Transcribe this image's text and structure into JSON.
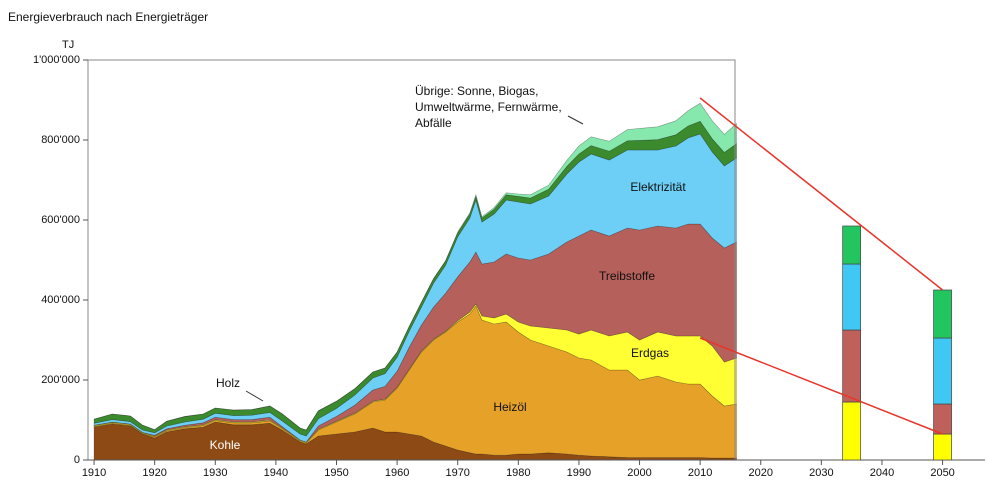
{
  "chart_data": {
    "type": "stacked_area",
    "title": "Energieverbrauch nach Energieträger",
    "y_unit": "TJ",
    "x": [
      1910,
      1913,
      1916,
      1918,
      1920,
      1922,
      1925,
      1928,
      1930,
      1933,
      1936,
      1939,
      1941,
      1944,
      1945,
      1947,
      1950,
      1953,
      1956,
      1958,
      1960,
      1962,
      1964,
      1966,
      1968,
      1970,
      1972,
      1973,
      1974,
      1976,
      1978,
      1980,
      1982,
      1985,
      1988,
      1990,
      1992,
      1995,
      1998,
      2000,
      2003,
      2006,
      2008,
      2010,
      2012,
      2014,
      2016
    ],
    "series": [
      {
        "name": "Kohle",
        "color": "#8e4a14",
        "values": [
          82000,
          90000,
          85000,
          65000,
          55000,
          70000,
          78000,
          82000,
          95000,
          88000,
          88000,
          92000,
          75000,
          45000,
          40000,
          60000,
          65000,
          70000,
          80000,
          70000,
          70000,
          65000,
          60000,
          45000,
          35000,
          25000,
          18000,
          15000,
          15000,
          12000,
          12000,
          15000,
          15000,
          18000,
          15000,
          12000,
          10000,
          8000,
          6000,
          6000,
          6000,
          6000,
          6000,
          6000,
          5000,
          5000,
          5000
        ]
      },
      {
        "name": "Heizöl",
        "color": "#e6a228",
        "values": [
          2000,
          2000,
          2000,
          1000,
          3000,
          3000,
          3000,
          4000,
          4000,
          5000,
          5000,
          6000,
          4000,
          2000,
          2000,
          15000,
          30000,
          45000,
          65000,
          80000,
          110000,
          160000,
          210000,
          255000,
          285000,
          320000,
          347000,
          370000,
          335000,
          328000,
          333000,
          305000,
          285000,
          267000,
          255000,
          243000,
          240000,
          217000,
          219000,
          194000,
          204000,
          189000,
          184000,
          184000,
          155000,
          130000,
          135000
        ]
      },
      {
        "name": "Erdgas",
        "color": "#ffff33",
        "values": [
          2000,
          2000,
          2000,
          2000,
          2000,
          2000,
          2000,
          2000,
          2000,
          2000,
          2000,
          2000,
          2000,
          2000,
          2000,
          2000,
          2000,
          2000,
          2000,
          2000,
          2000,
          2000,
          2000,
          2000,
          2000,
          3000,
          5000,
          5000,
          10000,
          15000,
          20000,
          25000,
          35000,
          45000,
          55000,
          60000,
          75000,
          85000,
          95000,
          100000,
          110000,
          115000,
          120000,
          120000,
          125000,
          110000,
          115000
        ]
      },
      {
        "name": "Treibstoffe",
        "color": "#b5605b",
        "values": [
          1000,
          1000,
          1000,
          1000,
          2000,
          3000,
          4000,
          5000,
          6000,
          6000,
          6000,
          7000,
          3000,
          1000,
          1000,
          8000,
          12000,
          20000,
          28000,
          32000,
          40000,
          55000,
          65000,
          80000,
          95000,
          110000,
          125000,
          130000,
          130000,
          140000,
          150000,
          160000,
          165000,
          185000,
          220000,
          245000,
          250000,
          250000,
          260000,
          275000,
          265000,
          270000,
          280000,
          280000,
          270000,
          285000,
          290000
        ]
      },
      {
        "name": "Elektrizität",
        "color": "#6dcff6",
        "values": [
          5000,
          6000,
          6000,
          6000,
          6000,
          7000,
          8000,
          9000,
          10000,
          10000,
          11000,
          12000,
          14000,
          15000,
          15000,
          18000,
          20000,
          25000,
          30000,
          32000,
          35000,
          40000,
          45000,
          60000,
          70000,
          100000,
          110000,
          130000,
          105000,
          120000,
          135000,
          140000,
          140000,
          145000,
          170000,
          185000,
          190000,
          190000,
          195000,
          200000,
          190000,
          205000,
          215000,
          225000,
          215000,
          205000,
          210000
        ]
      },
      {
        "name": "Holz",
        "color": "#3c8a2e",
        "values": [
          10000,
          14000,
          14000,
          12000,
          8000,
          12000,
          14000,
          13000,
          13000,
          14000,
          14000,
          16000,
          18000,
          15000,
          15000,
          20000,
          18000,
          16000,
          15000,
          14000,
          13000,
          12000,
          12000,
          11000,
          11000,
          10000,
          10000,
          10000,
          10000,
          12000,
          13000,
          14000,
          15000,
          17000,
          19000,
          20000,
          21000,
          22000,
          23000,
          24000,
          26000,
          28000,
          30000,
          32000,
          33000,
          34000,
          36000
        ]
      },
      {
        "name": "Übrige: Sonne, Biogas, Umweltwärme, Fernwärme, Abfälle",
        "color": "#86e8ad",
        "values": [
          0,
          0,
          0,
          0,
          0,
          0,
          0,
          0,
          0,
          0,
          0,
          0,
          0,
          0,
          0,
          0,
          0,
          0,
          0,
          0,
          0,
          0,
          0,
          0,
          0,
          2000,
          3000,
          3000,
          3000,
          4000,
          5000,
          6000,
          8000,
          10000,
          15000,
          20000,
          22000,
          25000,
          28000,
          30000,
          32000,
          35000,
          38000,
          45000,
          45000,
          45000,
          50000
        ]
      }
    ],
    "projections": {
      "x": [
        2035,
        2050
      ],
      "segments": [
        {
          "color": "#ffff00",
          "values": [
            145000,
            65000
          ]
        },
        {
          "color": "#c0605a",
          "values": [
            180000,
            75000
          ]
        },
        {
          "color": "#40c8f4",
          "values": [
            165000,
            165000
          ]
        },
        {
          "color": "#22c55e",
          "values": [
            95000,
            120000
          ]
        }
      ]
    },
    "projection_lines": [
      {
        "color": "#e8362a",
        "x": [
          2010,
          2050
        ],
        "values": [
          905000,
          425000
        ]
      },
      {
        "color": "#e8362a",
        "x": [
          2010,
          2050
        ],
        "values": [
          305000,
          65000
        ]
      }
    ],
    "xlim": [
      1909,
      2057
    ],
    "xticks": [
      1910,
      1920,
      1930,
      1940,
      1950,
      1960,
      1970,
      1980,
      1990,
      2000,
      2010,
      2020,
      2030,
      2040,
      2050
    ],
    "ylim": [
      0,
      1000000
    ],
    "yticks": [
      0,
      {
        "value": 200000,
        "label": "200'000"
      },
      {
        "value": 400000,
        "label": "400'000"
      },
      {
        "value": 600000,
        "label": "600'000"
      },
      {
        "value": 800000,
        "label": "800'000"
      },
      {
        "value": 1000000,
        "label": "1'000'000"
      }
    ]
  }
}
